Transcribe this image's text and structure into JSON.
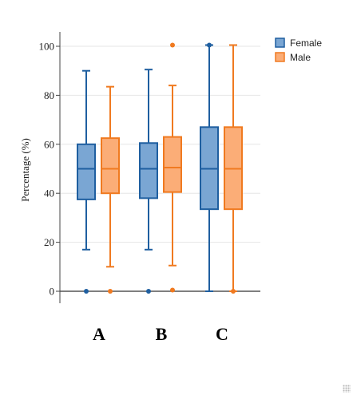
{
  "chart_data": {
    "type": "box",
    "title": "",
    "xlabel": "",
    "ylabel": "Percentage (%)",
    "ylim": [
      -5,
      105
    ],
    "yticks": [
      0,
      20,
      40,
      60,
      80,
      100
    ],
    "grid": true,
    "legend_position": "top-right",
    "categories": [
      "A",
      "B",
      "C"
    ],
    "colors": {
      "Female": {
        "stroke": "#1f5fa0",
        "fill": "#7aa6d3"
      },
      "Male": {
        "stroke": "#f07a20",
        "fill": "#fbad77"
      }
    },
    "series": [
      {
        "name": "Female",
        "boxes": [
          {
            "category": "A",
            "min": 17,
            "q1": 37.5,
            "median": 50,
            "q3": 60,
            "max": 90,
            "outliers": [
              0
            ]
          },
          {
            "category": "B",
            "min": 17,
            "q1": 38,
            "median": 50,
            "q3": 60.5,
            "max": 90.5,
            "outliers": [
              0
            ]
          },
          {
            "category": "C",
            "min": 0,
            "q1": 33.5,
            "median": 50,
            "q3": 67,
            "max": 100.5,
            "outliers": [
              100.5
            ]
          }
        ]
      },
      {
        "name": "Male",
        "boxes": [
          {
            "category": "A",
            "min": 10,
            "q1": 40,
            "median": 50,
            "q3": 62.5,
            "max": 83.5,
            "outliers": [
              0
            ]
          },
          {
            "category": "B",
            "min": 10.5,
            "q1": 40.5,
            "median": 50.5,
            "q3": 63,
            "max": 84,
            "outliers": [
              100.5,
              0.5
            ]
          },
          {
            "category": "C",
            "min": 0,
            "q1": 33.5,
            "median": 50,
            "q3": 67,
            "max": 100.5,
            "outliers": [
              0
            ]
          }
        ]
      }
    ]
  }
}
